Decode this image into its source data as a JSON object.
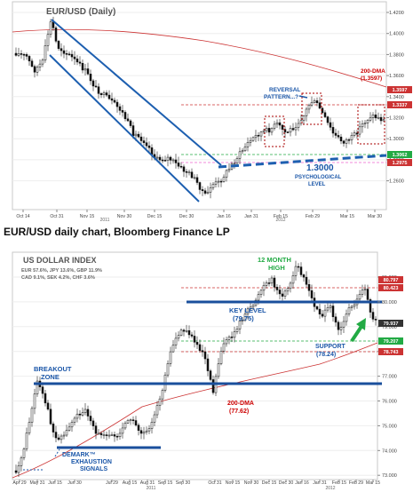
{
  "charts": [
    {
      "type": "candlestick",
      "title": "EUR/USD (Daily)",
      "y_ticks": [
        "1.4200",
        "1.4000",
        "1.3800",
        "1.3600",
        "1.3400",
        "1.3200",
        "1.3000",
        "1.2800",
        "1.2600"
      ],
      "x_ticks": [
        "Oct 14",
        "Oct 31",
        "Nov 15",
        "Nov 30",
        "Dec 15",
        "Dec 30",
        "Jan 16",
        "Jan 31",
        "Feb 15",
        "Feb 29",
        "Mar 15",
        "Mar 30"
      ],
      "x_year_labels": [
        "2011",
        "2012"
      ],
      "badges": [
        "1.3597",
        "1.3337",
        "1.3062",
        "1.2975"
      ],
      "annotations": {
        "dma_label": "200-DMA",
        "dma_value": "(1.3597)",
        "reversal_label_1": "REVERSAL",
        "reversal_label_2": "PATTERN...?",
        "psych_value": "1.3000",
        "psych_label_1": "PSYCHOLOGICAL",
        "psych_label_2": "LEVEL"
      },
      "colors": {
        "channel": "#1d5fb0",
        "dma": "#cc3333",
        "pattern_box": "#aa0000",
        "annotation_red": "#cc0000",
        "annotation_blue": "#1a56a8"
      }
    },
    {
      "type": "candlestick",
      "title": "US DOLLAR INDEX",
      "composition_1": "EUR 57.6%, JPY 13.6%, GBP 11.9%",
      "composition_2": "CAD 9.1%, SEK 4.2%, CHF 3.6%",
      "y_ticks": [
        "81.000",
        "80.000",
        "79.000",
        "78.000",
        "77.000",
        "76.000",
        "75.000",
        "74.000",
        "73.000"
      ],
      "x_ticks": [
        "Apr 29",
        "May 31",
        "Jun 15",
        "Jun 30",
        "Jul 29",
        "Aug 15",
        "Aug 31",
        "Sep 15",
        "Sep 30",
        "Oct 31",
        "Nov 15",
        "Nov 30",
        "Dec 15",
        "Dec 30",
        "Jan 16",
        "Jan 31",
        "Feb 15",
        "Feb 29",
        "Mar 15"
      ],
      "x_year_labels": [
        "2011",
        "2012"
      ],
      "badges": [
        "80.797",
        "80.423",
        "79.937",
        "79.207",
        "78.743"
      ],
      "annotations": {
        "twelve_month_1": "12 MONTH",
        "twelve_month_2": "HIGH",
        "key_level": "KEY LEVEL",
        "key_level_value": "(79.75)",
        "support": "SUPPORT",
        "support_value": "(78.24)",
        "breakout_1": "BREAKOUT",
        "breakout_2": "ZONE",
        "dma_label": "200-DMA",
        "dma_value": "(77.62)",
        "demark_1": "DEMARK™",
        "demark_2": "EXHAUSTION",
        "demark_3": "SIGNALS"
      },
      "colors": {
        "levels": "#1a4f9c",
        "dma": "#cc3333",
        "arrow": "#22aa44",
        "annotation_blue": "#1a56a8",
        "annotation_green": "#22aa44",
        "annotation_red": "#cc0000"
      }
    }
  ],
  "caption": "EUR/USD daily chart, Bloomberg Finance LP"
}
